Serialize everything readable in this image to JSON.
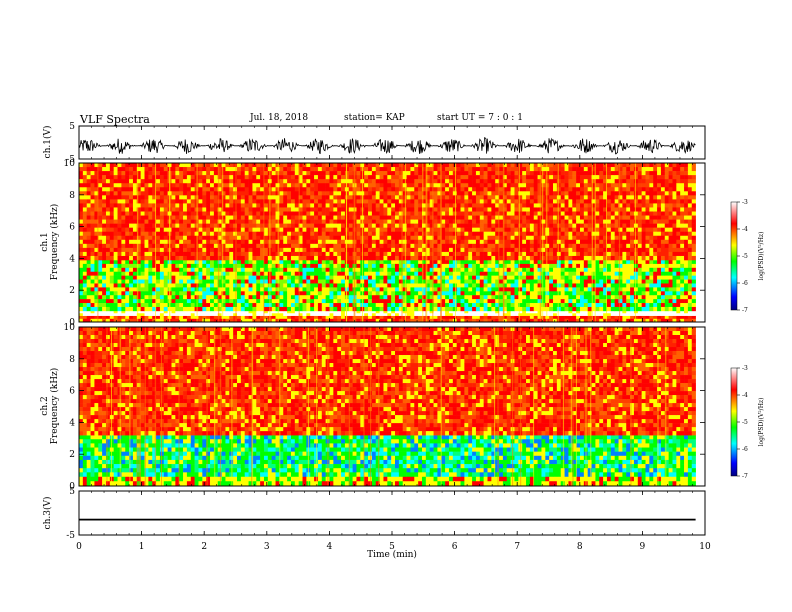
{
  "header": {
    "title": "VLF Spectra",
    "date": "Jul. 18, 2018",
    "station": "station= KAP",
    "start": "start UT =  7 : 0 : 1"
  },
  "chart_data": [
    {
      "type": "line",
      "ylabel": "ch.1(V)",
      "xlim": [
        0,
        10
      ],
      "ylim": [
        -5,
        5
      ],
      "y_ticks": [
        "5",
        "-5"
      ],
      "series": [
        {
          "x_range": [
            0,
            9.85
          ],
          "y_mean": -1.0,
          "y_spread": [
            -3.5,
            1.5
          ]
        }
      ]
    },
    {
      "type": "heatmap",
      "ylabel": "ch.1\nFrequency (kHz)",
      "xlim": [
        0,
        10
      ],
      "ylim": [
        0,
        10
      ],
      "y_ticks": [
        "0",
        "2",
        "4",
        "6",
        "8",
        "10"
      ],
      "x_extent": [
        0,
        9.85
      ],
      "colorbar": {
        "label": "log(PSD)(V²/Hz)",
        "ticks": [
          "-3",
          "-4",
          "-5",
          "-6",
          "-7"
        ],
        "range": [
          -7,
          -3
        ]
      },
      "bands": [
        {
          "f": [
            0,
            0.4
          ],
          "level": "red"
        },
        {
          "f": [
            0.4,
            0.7
          ],
          "level": "white-gap"
        },
        {
          "f": [
            0.7,
            3.9
          ],
          "level": "green-yellow"
        },
        {
          "f": [
            3.9,
            10
          ],
          "level": "red"
        }
      ]
    },
    {
      "type": "heatmap",
      "ylabel": "ch.2\nFrequency (kHz)",
      "xlim": [
        0,
        10
      ],
      "ylim": [
        0,
        10
      ],
      "y_ticks": [
        "0",
        "2",
        "4",
        "6",
        "8",
        "10"
      ],
      "x_extent": [
        0,
        9.85
      ],
      "colorbar": {
        "label": "log(PSD)(V²/Hz)",
        "ticks": [
          "-3",
          "-4",
          "-5",
          "-6",
          "-7"
        ],
        "range": [
          -7,
          -3
        ]
      },
      "bands": [
        {
          "f": [
            0,
            0.6
          ],
          "level": "yellow-green"
        },
        {
          "f": [
            0.6,
            3.2
          ],
          "level": "green-cyan"
        },
        {
          "f": [
            3.2,
            10
          ],
          "level": "red"
        }
      ]
    },
    {
      "type": "line",
      "ylabel": "ch.3(V)",
      "xlabel": "Time (min)",
      "xlim": [
        0,
        10
      ],
      "ylim": [
        -5,
        5
      ],
      "y_ticks": [
        "5",
        "-5"
      ],
      "x_ticks": [
        "0",
        "1",
        "2",
        "3",
        "4",
        "5",
        "6",
        "7",
        "8",
        "9",
        "10"
      ],
      "series": [
        {
          "x_range": [
            0,
            9.85
          ],
          "y_mean": -1.5,
          "y_spread": [
            -1.7,
            -1.3
          ]
        }
      ]
    }
  ],
  "colors": {
    "scale": [
      "#000080",
      "#0000ff",
      "#00ffff",
      "#00ff00",
      "#ffff00",
      "#ff0000",
      "#ffffff"
    ]
  }
}
